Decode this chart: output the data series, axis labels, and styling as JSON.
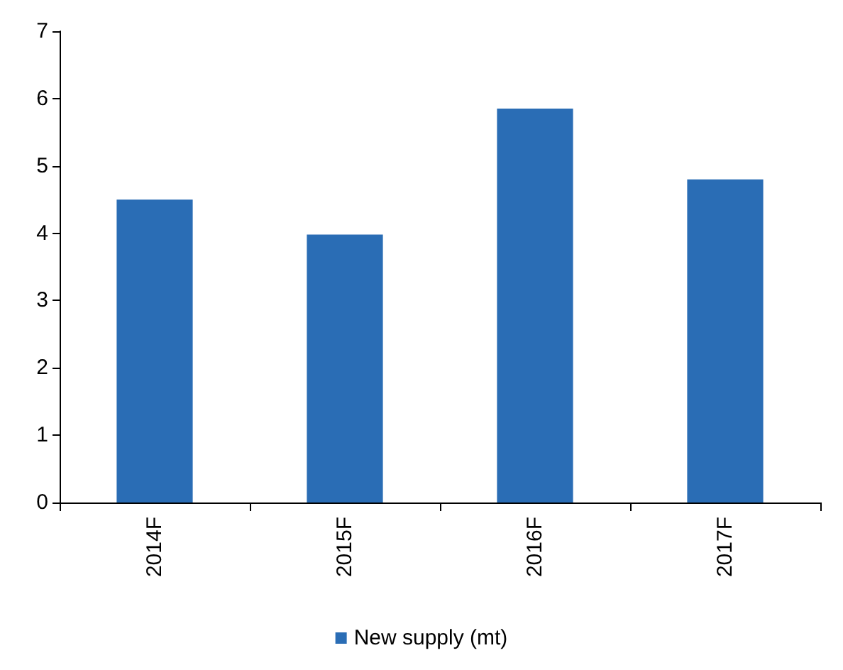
{
  "chart_data": {
    "type": "bar",
    "categories": [
      "2014F",
      "2015F",
      "2016F",
      "2017F"
    ],
    "series": [
      {
        "name": "New supply (mt)",
        "color": "#2a6db5",
        "values": [
          4.5,
          3.98,
          5.85,
          4.8
        ]
      }
    ],
    "ylim": [
      0,
      7
    ],
    "yticks": [
      0,
      1,
      2,
      3,
      4,
      5,
      6,
      7
    ],
    "grid": false,
    "legend": "bottom"
  }
}
